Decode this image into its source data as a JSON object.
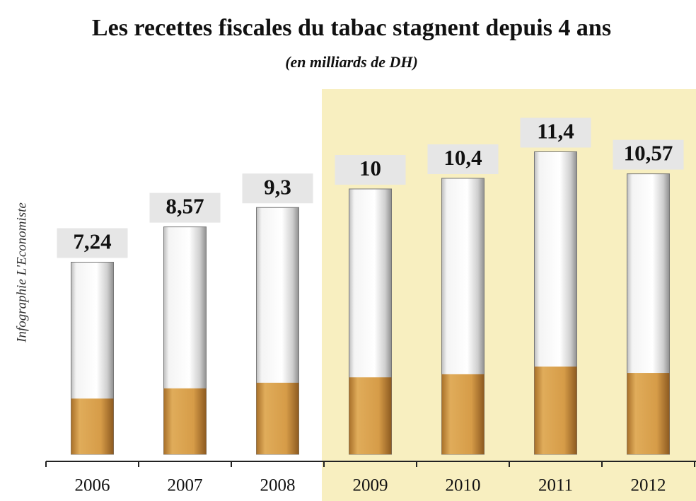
{
  "chart_data": {
    "type": "bar",
    "title": "Les recettes fiscales du tabac stagnent depuis 4 ans",
    "subtitle": "(en milliards de DH)",
    "side_note": "Infographie L'Economiste",
    "categories": [
      "2006",
      "2007",
      "2008",
      "2009",
      "2010",
      "2011",
      "2012"
    ],
    "values": [
      7.24,
      8.57,
      9.3,
      10,
      10.4,
      11.4,
      10.57
    ],
    "value_labels": [
      "7,24",
      "8,57",
      "9,3",
      "10",
      "10,4",
      "11,4",
      "10,57"
    ],
    "color": "#d49a45"
  }
}
